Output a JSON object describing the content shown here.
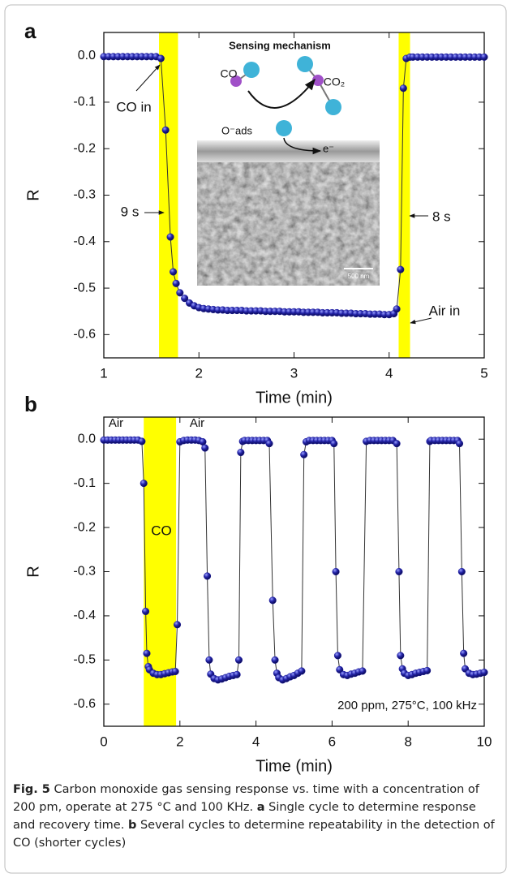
{
  "chart_data": [
    {
      "type": "line",
      "panel": "a",
      "xlabel": "Time (min)",
      "ylabel": "R",
      "xlim": [
        1,
        5
      ],
      "ylim": [
        -0.65,
        0.05
      ],
      "xticks": [
        1,
        2,
        3,
        4,
        5
      ],
      "yticks": [
        {
          "value": 0,
          "label": "0.0"
        },
        -0.1,
        -0.2,
        -0.3,
        -0.4,
        -0.5,
        -0.6
      ],
      "highlights": [
        [
          1.58,
          1.78
        ],
        [
          4.1,
          4.22
        ]
      ],
      "highlight_color": "#ffff00",
      "annotations": [
        "Sensing mechanism",
        "CO in",
        "9 s",
        "8 s",
        "Air in",
        "CO",
        "CO₂",
        "O⁻ads",
        "e⁻",
        "500 nm"
      ],
      "series": [
        {
          "color": "#1c1c9e",
          "x": [
            1.0,
            1.05,
            1.1,
            1.15,
            1.2,
            1.25,
            1.3,
            1.35,
            1.4,
            1.45,
            1.5,
            1.55,
            1.6,
            1.65,
            1.7,
            1.73,
            1.76,
            1.8,
            1.85,
            1.9,
            1.95,
            2.0,
            2.05,
            2.1,
            2.15,
            2.2,
            2.25,
            2.3,
            2.35,
            2.4,
            2.45,
            2.5,
            2.55,
            2.6,
            2.65,
            2.7,
            2.75,
            2.8,
            2.85,
            2.9,
            2.95,
            3.0,
            3.05,
            3.1,
            3.15,
            3.2,
            3.25,
            3.3,
            3.35,
            3.4,
            3.45,
            3.5,
            3.55,
            3.6,
            3.65,
            3.7,
            3.75,
            3.8,
            3.85,
            3.9,
            3.95,
            4.0,
            4.05,
            4.08,
            4.12,
            4.15,
            4.18,
            4.22,
            4.25,
            4.3,
            4.35,
            4.4,
            4.45,
            4.5,
            4.55,
            4.6,
            4.65,
            4.7,
            4.75,
            4.8,
            4.85,
            4.9,
            4.95,
            5.0
          ],
          "values": [
            -0.002,
            -0.002,
            -0.002,
            -0.002,
            -0.002,
            -0.002,
            -0.002,
            -0.002,
            -0.002,
            -0.002,
            -0.002,
            -0.002,
            -0.006,
            -0.16,
            -0.39,
            -0.465,
            -0.49,
            -0.51,
            -0.522,
            -0.532,
            -0.538,
            -0.542,
            -0.544,
            -0.545,
            -0.546,
            -0.547,
            -0.547,
            -0.548,
            -0.548,
            -0.548,
            -0.548,
            -0.549,
            -0.549,
            -0.549,
            -0.549,
            -0.55,
            -0.55,
            -0.55,
            -0.55,
            -0.551,
            -0.551,
            -0.551,
            -0.551,
            -0.552,
            -0.552,
            -0.552,
            -0.552,
            -0.553,
            -0.553,
            -0.553,
            -0.553,
            -0.554,
            -0.554,
            -0.554,
            -0.555,
            -0.555,
            -0.555,
            -0.556,
            -0.556,
            -0.556,
            -0.557,
            -0.557,
            -0.555,
            -0.545,
            -0.46,
            -0.07,
            -0.006,
            -0.003,
            -0.003,
            -0.003,
            -0.003,
            -0.003,
            -0.003,
            -0.003,
            -0.003,
            -0.003,
            -0.003,
            -0.003,
            -0.003,
            -0.003,
            -0.003,
            -0.003,
            -0.003,
            -0.003
          ]
        }
      ]
    },
    {
      "type": "line",
      "panel": "b",
      "xlabel": "Time (min)",
      "ylabel": "R",
      "xlim": [
        0,
        10
      ],
      "ylim": [
        -0.65,
        0.05
      ],
      "xticks": [
        0,
        2,
        4,
        6,
        8,
        10
      ],
      "yticks": [
        {
          "value": 0,
          "label": "0.0"
        },
        -0.1,
        -0.2,
        -0.3,
        -0.4,
        -0.5,
        -0.6
      ],
      "highlights": [
        [
          1.05,
          1.9
        ]
      ],
      "highlight_color": "#ffff00",
      "annotations": [
        "Air",
        "Air",
        "CO",
        "200 ppm, 275°C, 100 kHz"
      ],
      "series": [
        {
          "color": "#1c1c9e",
          "x": [
            0.0,
            0.1,
            0.2,
            0.3,
            0.4,
            0.5,
            0.6,
            0.7,
            0.8,
            0.9,
            1.0,
            1.05,
            1.1,
            1.13,
            1.17,
            1.2,
            1.3,
            1.4,
            1.5,
            1.6,
            1.7,
            1.8,
            1.88,
            1.93,
            2.0,
            2.1,
            2.2,
            2.3,
            2.4,
            2.5,
            2.6,
            2.66,
            2.72,
            2.77,
            2.81,
            2.9,
            3.0,
            3.1,
            3.2,
            3.3,
            3.4,
            3.5,
            3.55,
            3.6,
            3.65,
            3.7,
            3.8,
            3.9,
            4.0,
            4.1,
            4.2,
            4.3,
            4.35,
            4.44,
            4.5,
            4.55,
            4.6,
            4.7,
            4.8,
            4.9,
            5.0,
            5.1,
            5.2,
            5.26,
            5.32,
            5.4,
            5.5,
            5.6,
            5.7,
            5.8,
            5.9,
            6.0,
            6.05,
            6.1,
            6.15,
            6.2,
            6.3,
            6.4,
            6.5,
            6.6,
            6.7,
            6.8,
            6.9,
            7.0,
            7.1,
            7.2,
            7.3,
            7.4,
            7.5,
            7.6,
            7.7,
            7.76,
            7.8,
            7.85,
            7.9,
            8.0,
            8.1,
            8.2,
            8.3,
            8.4,
            8.5,
            8.57,
            8.6,
            8.7,
            8.8,
            8.9,
            9.0,
            9.1,
            9.2,
            9.3,
            9.35,
            9.41,
            9.46,
            9.5,
            9.6,
            9.7,
            9.8,
            9.9,
            10.0
          ],
          "values": [
            -0.002,
            -0.002,
            -0.002,
            -0.002,
            -0.002,
            -0.002,
            -0.002,
            -0.002,
            -0.002,
            -0.002,
            -0.005,
            -0.1,
            -0.39,
            -0.485,
            -0.515,
            -0.522,
            -0.53,
            -0.533,
            -0.533,
            -0.531,
            -0.529,
            -0.527,
            -0.526,
            -0.42,
            -0.006,
            -0.003,
            -0.002,
            -0.002,
            -0.002,
            -0.003,
            -0.006,
            -0.02,
            -0.31,
            -0.5,
            -0.532,
            -0.542,
            -0.545,
            -0.543,
            -0.54,
            -0.537,
            -0.535,
            -0.533,
            -0.5,
            -0.03,
            -0.005,
            -0.003,
            -0.003,
            -0.003,
            -0.003,
            -0.003,
            -0.003,
            -0.003,
            -0.01,
            -0.365,
            -0.5,
            -0.53,
            -0.54,
            -0.545,
            -0.542,
            -0.538,
            -0.535,
            -0.53,
            -0.525,
            -0.035,
            -0.006,
            -0.003,
            -0.003,
            -0.003,
            -0.003,
            -0.003,
            -0.003,
            -0.003,
            -0.01,
            -0.3,
            -0.49,
            -0.522,
            -0.533,
            -0.535,
            -0.532,
            -0.53,
            -0.527,
            -0.525,
            -0.005,
            -0.003,
            -0.003,
            -0.003,
            -0.003,
            -0.003,
            -0.003,
            -0.003,
            -0.01,
            -0.3,
            -0.49,
            -0.52,
            -0.53,
            -0.535,
            -0.533,
            -0.53,
            -0.528,
            -0.526,
            -0.524,
            -0.005,
            -0.003,
            -0.003,
            -0.003,
            -0.003,
            -0.003,
            -0.003,
            -0.003,
            -0.003,
            -0.01,
            -0.3,
            -0.485,
            -0.52,
            -0.53,
            -0.533,
            -0.532,
            -0.53,
            -0.528
          ]
        }
      ]
    }
  ],
  "caption": {
    "figure": "Fig. 5",
    "text": "Carbon monoxide gas sensing response vs. time with a concentration of 200 pm, operate at 275 °C and 100 KHz.",
    "panels": [
      {
        "label": "a",
        "text": "Single cycle to determine response and recovery time."
      },
      {
        "label": "b",
        "text": "Several cycles to determine repeatability in the detection of CO (shorter cycles)"
      }
    ]
  }
}
